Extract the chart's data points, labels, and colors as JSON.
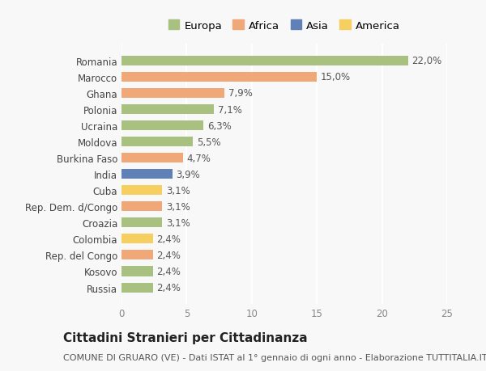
{
  "countries": [
    "Russia",
    "Kosovo",
    "Rep. del Congo",
    "Colombia",
    "Croazia",
    "Rep. Dem. d/Congo",
    "Cuba",
    "India",
    "Burkina Faso",
    "Moldova",
    "Ucraina",
    "Polonia",
    "Ghana",
    "Marocco",
    "Romania"
  ],
  "values": [
    2.4,
    2.4,
    2.4,
    2.4,
    3.1,
    3.1,
    3.1,
    3.9,
    4.7,
    5.5,
    6.3,
    7.1,
    7.9,
    15.0,
    22.0
  ],
  "labels": [
    "2,4%",
    "2,4%",
    "2,4%",
    "2,4%",
    "3,1%",
    "3,1%",
    "3,1%",
    "3,9%",
    "4,7%",
    "5,5%",
    "6,3%",
    "7,1%",
    "7,9%",
    "15,0%",
    "22,0%"
  ],
  "colors": [
    "#a8c080",
    "#a8c080",
    "#f0a878",
    "#f5d060",
    "#a8c080",
    "#f0a878",
    "#f5d060",
    "#6080b8",
    "#f0a878",
    "#a8c080",
    "#a8c080",
    "#a8c080",
    "#f0a878",
    "#f0a878",
    "#a8c080"
  ],
  "legend_names": [
    "Europa",
    "Africa",
    "Asia",
    "America"
  ],
  "legend_colors": [
    "#a8c080",
    "#f0a878",
    "#6080b8",
    "#f5d060"
  ],
  "xlim": [
    0,
    25
  ],
  "xticks": [
    0,
    5,
    10,
    15,
    20,
    25
  ],
  "title": "Cittadini Stranieri per Cittadinanza",
  "subtitle": "COMUNE DI GRUARO (VE) - Dati ISTAT al 1° gennaio di ogni anno - Elaborazione TUTTITALIA.IT",
  "background_color": "#f8f8f8",
  "grid_color": "#ffffff",
  "bar_height": 0.6,
  "label_fontsize": 8.5,
  "tick_fontsize": 8.5,
  "title_fontsize": 11,
  "subtitle_fontsize": 8
}
